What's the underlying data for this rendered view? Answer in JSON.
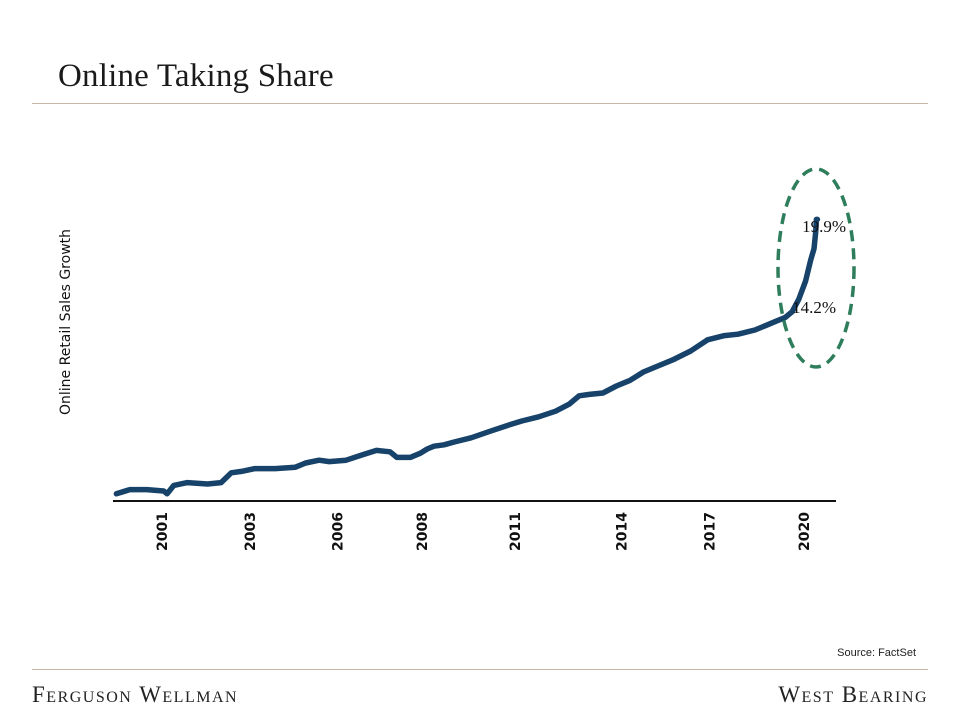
{
  "page": {
    "title": "Online Taking Share",
    "source": "Source: FactSet",
    "footer_left": "Ferguson Wellman",
    "footer_right": "West Bearing"
  },
  "colors": {
    "line": "#17426a",
    "highlight": "#2e7d5b",
    "rule": "#c9b8a6"
  },
  "chart_data": {
    "type": "line",
    "title": "Online Taking Share",
    "xlabel": "",
    "ylabel": "Online Retail Sales Growth",
    "xlim": [
      1999.5,
      2020.9
    ],
    "ylim": [
      0,
      20
    ],
    "x_ticks": [
      {
        "value": 2000.95,
        "label": "2001"
      },
      {
        "value": 2003.55,
        "label": "2003"
      },
      {
        "value": 2006.15,
        "label": "2006"
      },
      {
        "value": 2008.65,
        "label": "2008"
      },
      {
        "value": 2011.4,
        "label": "2011"
      },
      {
        "value": 2014.55,
        "label": "2014"
      },
      {
        "value": 2017.15,
        "label": "2017"
      },
      {
        "value": 2019.95,
        "label": "2020"
      }
    ],
    "series": [
      {
        "name": "Online Retail Sales Growth",
        "x": [
          1999.6,
          2000.0,
          2000.5,
          2001.0,
          2001.1,
          2001.3,
          2001.7,
          2002.3,
          2002.7,
          2003.0,
          2003.3,
          2003.7,
          2004.3,
          2004.9,
          2005.2,
          2005.6,
          2005.9,
          2006.4,
          2006.9,
          2007.3,
          2007.7,
          2007.9,
          2008.3,
          2008.6,
          2008.8,
          2009.0,
          2009.3,
          2009.6,
          2010.1,
          2010.7,
          2011.2,
          2011.6,
          2012.1,
          2012.6,
          2013.0,
          2013.3,
          2013.6,
          2014.0,
          2014.4,
          2014.8,
          2015.2,
          2015.7,
          2016.1,
          2016.6,
          2017.1,
          2017.6,
          2018.0,
          2018.5,
          2018.8,
          2019.1,
          2019.4,
          2019.6,
          2019.8,
          2020.0,
          2020.15,
          2020.25,
          2020.3,
          2020.32,
          2020.35
        ],
        "y": [
          0.3,
          0.6,
          0.6,
          0.5,
          0.3,
          0.9,
          1.1,
          1.0,
          1.1,
          1.8,
          1.9,
          2.1,
          2.1,
          2.2,
          2.5,
          2.7,
          2.6,
          2.7,
          3.1,
          3.4,
          3.3,
          2.9,
          2.9,
          3.2,
          3.5,
          3.7,
          3.8,
          4.0,
          4.3,
          4.8,
          5.2,
          5.5,
          5.8,
          6.2,
          6.7,
          7.3,
          7.4,
          7.5,
          8.0,
          8.4,
          9.0,
          9.5,
          9.9,
          10.5,
          11.3,
          11.6,
          11.7,
          12.0,
          12.3,
          12.6,
          12.9,
          13.3,
          14.2,
          15.5,
          17.0,
          17.8,
          19.0,
          19.9,
          19.9
        ]
      }
    ],
    "annotations": [
      {
        "label": "19.9%",
        "x": 2020.35,
        "y": 19.9
      },
      {
        "label": "14.2%",
        "x": 2019.8,
        "y": 14.2
      }
    ]
  }
}
